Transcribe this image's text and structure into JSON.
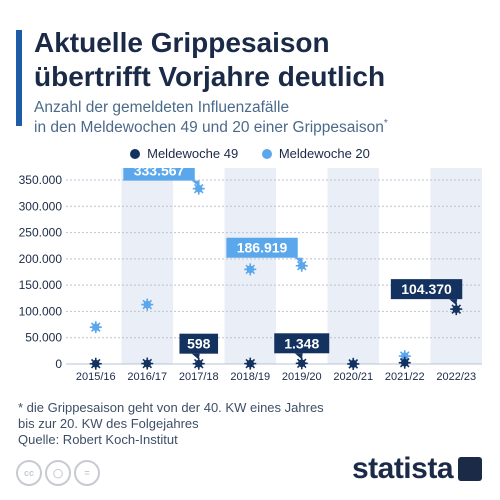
{
  "title": "Aktuelle Grippesaison\nübertrifft Vorjahre deutlich",
  "subtitle": "Anzahl der gemeldeten Influenzafälle\nin den Meldewochen 49 und 20 einer Grippesaison",
  "subtitle_mark": "*",
  "footnote": "* die Grippesaison geht von der 40. KW eines Jahres\n   bis zur 20. KW des Folgejahres",
  "source": "Quelle: Robert Koch-Institut",
  "brand": "statista",
  "license_icons": [
    "cc-icon",
    "person-icon",
    "equals-icon"
  ],
  "colors": {
    "dark": "#13325f",
    "light": "#5ba7ec",
    "band": "#e9eef7",
    "label_dark": "#13325f",
    "label_light": "#5ba7ec"
  },
  "chart_data": {
    "type": "scatter",
    "categories": [
      "2015/16",
      "2016/17",
      "2017/18",
      "2018/19",
      "2019/20",
      "2020/21",
      "2021/22",
      "2022/23"
    ],
    "series": [
      {
        "name": "Meldewoche 49",
        "values": [
          500,
          800,
          598,
          700,
          1348,
          100,
          2500,
          104370
        ]
      },
      {
        "name": "Meldewoche 20",
        "values": [
          70000,
          113000,
          333567,
          180000,
          186919,
          500,
          15000,
          null
        ]
      }
    ],
    "data_labels": [
      {
        "series": 1,
        "index": 2,
        "text": "333.567"
      },
      {
        "series": 1,
        "index": 4,
        "text": "186.919"
      },
      {
        "series": 0,
        "index": 2,
        "text": "598"
      },
      {
        "series": 0,
        "index": 4,
        "text": "1.348"
      },
      {
        "series": 0,
        "index": 7,
        "text": "104.370"
      }
    ],
    "y_ticks": [
      {
        "value": 0,
        "label": "0"
      },
      {
        "value": 50000,
        "label": "50.000"
      },
      {
        "value": 100000,
        "label": "100.000"
      },
      {
        "value": 150000,
        "label": "150.000"
      },
      {
        "value": 200000,
        "label": "200.000"
      },
      {
        "value": 250000,
        "label": "250.000"
      },
      {
        "value": 300000,
        "label": "300.000"
      },
      {
        "value": 350000,
        "label": "350.000"
      }
    ],
    "ylim": [
      0,
      350000
    ],
    "grid": true,
    "legend": "top-center"
  }
}
